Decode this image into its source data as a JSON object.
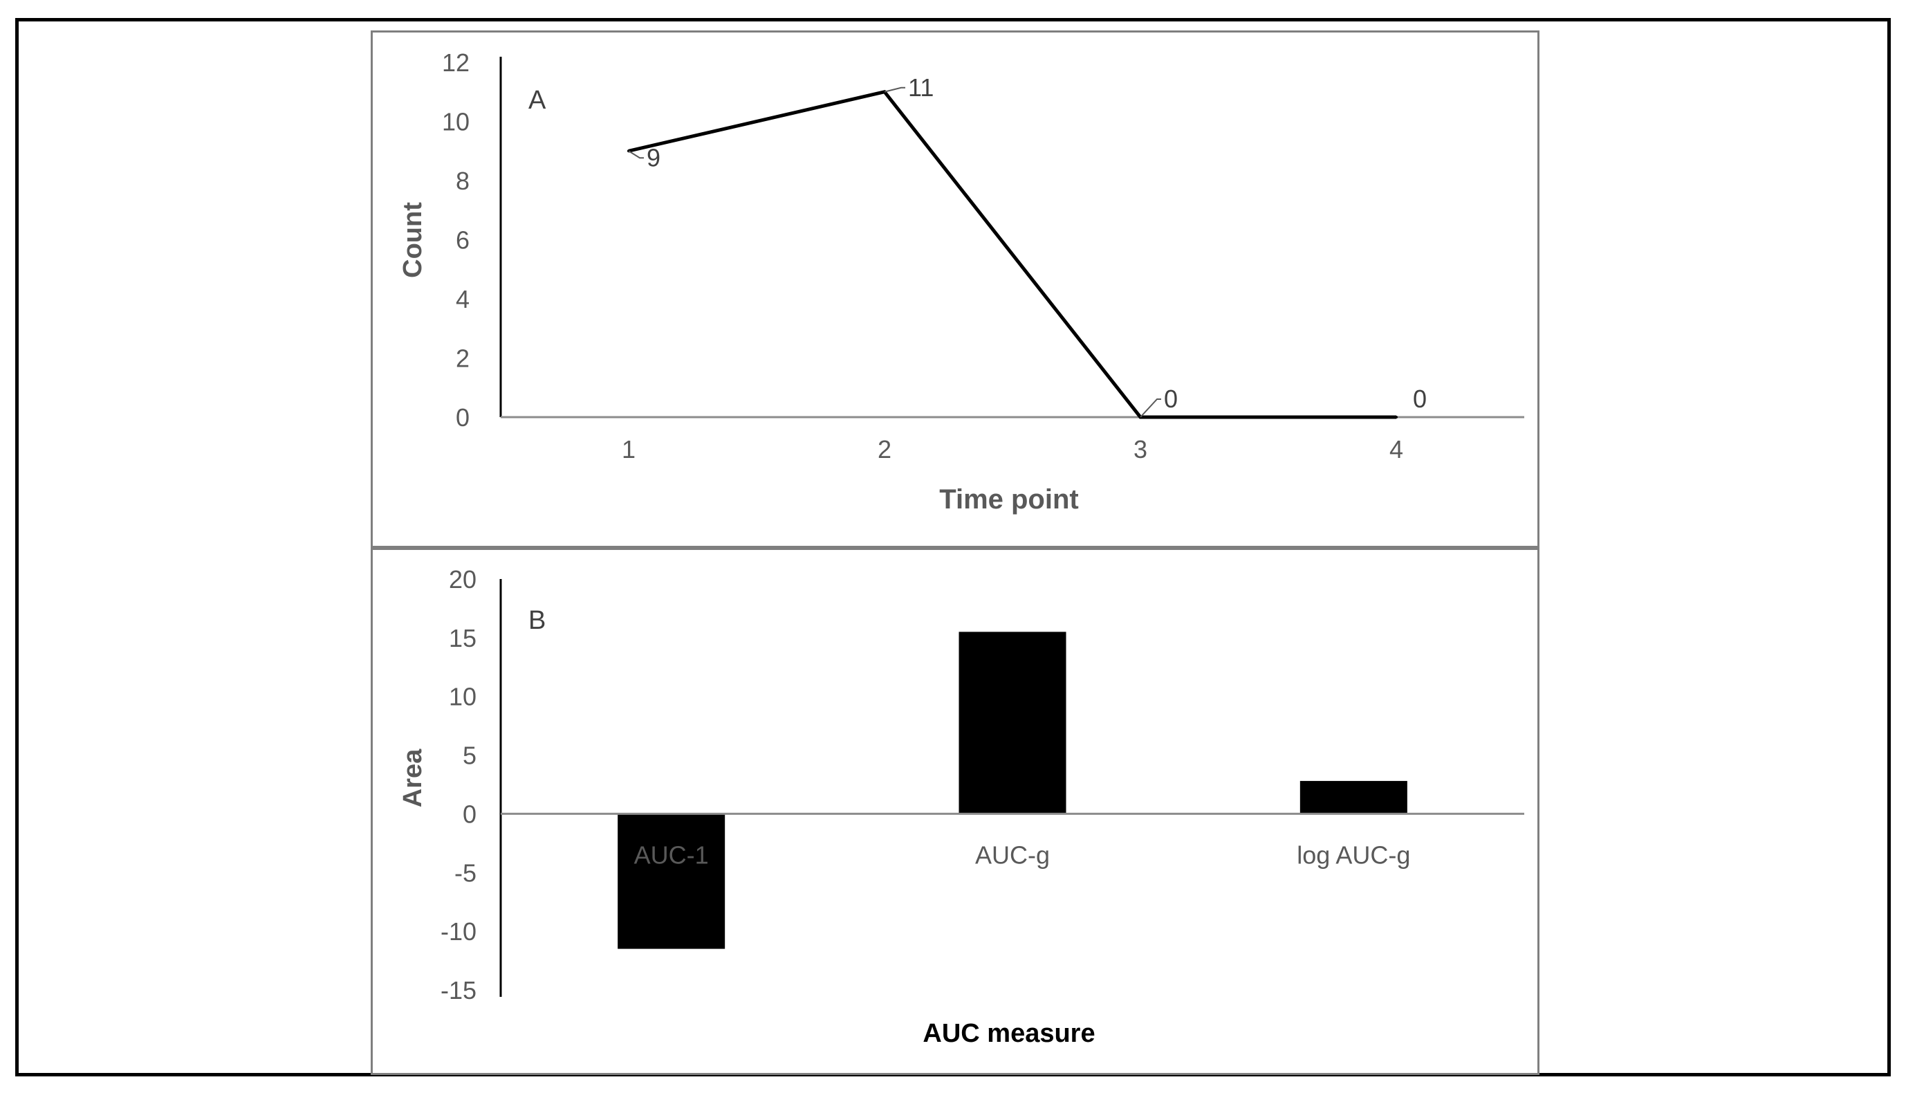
{
  "chart_data": [
    {
      "type": "line",
      "panel_label": "A",
      "x": [
        1,
        2,
        3,
        4
      ],
      "categories": [
        "1",
        "2",
        "3",
        "4"
      ],
      "values": [
        9,
        11,
        0,
        0
      ],
      "data_labels": [
        "9",
        "11",
        "0",
        "0"
      ],
      "xlabel": "Time point",
      "ylabel": "Count",
      "ylim": [
        0,
        12
      ],
      "yticks": [
        "0",
        "2",
        "4",
        "6",
        "8",
        "10",
        "12"
      ],
      "grid": false,
      "line_color": "#000000"
    },
    {
      "type": "bar",
      "panel_label": "B",
      "categories": [
        "AUC-1",
        "AUC-g",
        "log AUC-g"
      ],
      "values": [
        -11.5,
        15.5,
        2.8
      ],
      "xlabel": "AUC measure",
      "ylabel": "Area",
      "ylim": [
        -15,
        20
      ],
      "yticks": [
        "-15",
        "-10",
        "-5",
        "0",
        "5",
        "10",
        "15",
        "20"
      ],
      "grid": false,
      "bar_color": "#000000",
      "axis_text_color": "#595959"
    }
  ]
}
